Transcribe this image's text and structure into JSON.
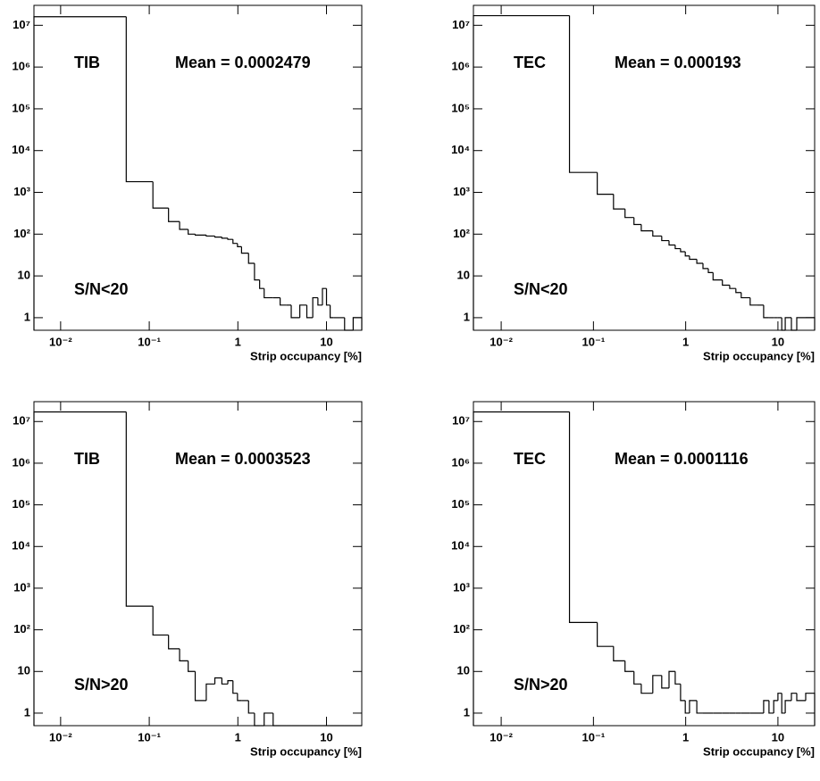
{
  "chart_data": [
    {
      "type": "histogram",
      "detector": "TIB",
      "mean_label": "Mean = 0.0002479",
      "cut_label": "S/N<20",
      "x_label": "Strip occupancy [%]",
      "log_x": true,
      "log_y": true,
      "color": "#000000",
      "xlim": [
        0.005,
        25
      ],
      "ylim": [
        0.5,
        30000000
      ],
      "xticks": [
        {
          "value": 0.01,
          "label": "10⁻²"
        },
        {
          "value": 0.1,
          "label": "10⁻¹"
        },
        1,
        10
      ],
      "yticks": [
        1,
        10,
        {
          "value": 100,
          "label": "10²"
        },
        {
          "value": 1000,
          "label": "10³"
        },
        {
          "value": 10000,
          "label": "10⁴"
        },
        {
          "value": 100000,
          "label": "10⁵"
        },
        {
          "value": 1000000,
          "label": "10⁶"
        },
        {
          "value": 10000000,
          "label": "10⁷"
        }
      ],
      "bins": [
        0,
        0.055,
        0.11,
        0.165,
        0.22,
        0.275,
        0.33,
        0.44,
        0.55,
        0.66,
        0.77,
        0.88,
        0.99,
        1.1,
        1.32,
        1.54,
        1.76,
        1.98,
        2.5,
        3,
        3.5,
        4,
        5,
        6,
        7,
        8,
        9,
        10,
        11,
        12,
        14,
        16,
        20,
        25
      ],
      "values": [
        16000000,
        1800,
        420,
        200,
        130,
        100,
        95,
        90,
        85,
        80,
        75,
        60,
        50,
        35,
        20,
        8,
        5,
        3,
        3,
        2,
        2,
        1,
        2,
        1,
        3,
        2,
        5,
        2,
        1,
        1,
        1,
        0,
        1
      ]
    },
    {
      "type": "histogram",
      "detector": "TEC",
      "mean_label": "Mean = 0.000193",
      "cut_label": "S/N<20",
      "x_label": "Strip occupancy [%]",
      "log_x": true,
      "log_y": true,
      "color": "#000000",
      "xlim": [
        0.005,
        25
      ],
      "ylim": [
        0.5,
        30000000
      ],
      "xticks": [
        {
          "value": 0.01,
          "label": "10⁻²"
        },
        {
          "value": 0.1,
          "label": "10⁻¹"
        },
        1,
        10
      ],
      "yticks": [
        1,
        10,
        {
          "value": 100,
          "label": "10²"
        },
        {
          "value": 1000,
          "label": "10³"
        },
        {
          "value": 10000,
          "label": "10⁴"
        },
        {
          "value": 100000,
          "label": "10⁵"
        },
        {
          "value": 1000000,
          "label": "10⁶"
        },
        {
          "value": 10000000,
          "label": "10⁷"
        }
      ],
      "bins": [
        0,
        0.055,
        0.11,
        0.165,
        0.22,
        0.275,
        0.33,
        0.44,
        0.55,
        0.66,
        0.77,
        0.88,
        0.99,
        1.1,
        1.32,
        1.54,
        1.76,
        1.98,
        2.5,
        3,
        3.5,
        4,
        5,
        6,
        7,
        8,
        9,
        10,
        11,
        12,
        14,
        16,
        20,
        25
      ],
      "values": [
        17000000,
        3000,
        900,
        400,
        250,
        170,
        120,
        90,
        70,
        55,
        45,
        38,
        30,
        25,
        20,
        15,
        12,
        8,
        6,
        5,
        4,
        3,
        2,
        2,
        1,
        1,
        1,
        1,
        0,
        1,
        0,
        1,
        1
      ]
    },
    {
      "type": "histogram",
      "detector": "TIB",
      "mean_label": "Mean = 0.0003523",
      "cut_label": "S/N>20",
      "x_label": "Strip occupancy [%]",
      "log_x": true,
      "log_y": true,
      "color": "#000000",
      "xlim": [
        0.005,
        25
      ],
      "ylim": [
        0.5,
        30000000
      ],
      "xticks": [
        {
          "value": 0.01,
          "label": "10⁻²"
        },
        {
          "value": 0.1,
          "label": "10⁻¹"
        },
        1,
        10
      ],
      "yticks": [
        1,
        10,
        {
          "value": 100,
          "label": "10²"
        },
        {
          "value": 1000,
          "label": "10³"
        },
        {
          "value": 10000,
          "label": "10⁴"
        },
        {
          "value": 100000,
          "label": "10⁵"
        },
        {
          "value": 1000000,
          "label": "10⁶"
        },
        {
          "value": 10000000,
          "label": "10⁷"
        }
      ],
      "bins": [
        0,
        0.055,
        0.11,
        0.165,
        0.22,
        0.275,
        0.33,
        0.44,
        0.55,
        0.66,
        0.77,
        0.88,
        0.99,
        1.1,
        1.32,
        1.54,
        1.76,
        1.98,
        2.5,
        3,
        3.5,
        4,
        5,
        6,
        7,
        8,
        9,
        10,
        11,
        12,
        14,
        16,
        20,
        25
      ],
      "values": [
        17000000,
        370,
        75,
        35,
        18,
        10,
        2,
        5,
        7,
        5,
        6,
        3,
        2,
        2,
        1,
        0,
        0,
        1,
        0,
        0,
        0,
        0,
        0,
        0,
        0,
        0,
        0,
        0,
        0,
        0,
        0,
        0,
        0
      ]
    },
    {
      "type": "histogram",
      "detector": "TEC",
      "mean_label": "Mean = 0.0001116",
      "cut_label": "S/N>20",
      "x_label": "Strip occupancy [%]",
      "log_x": true,
      "log_y": true,
      "color": "#000000",
      "xlim": [
        0.005,
        25
      ],
      "ylim": [
        0.5,
        30000000
      ],
      "xticks": [
        {
          "value": 0.01,
          "label": "10⁻²"
        },
        {
          "value": 0.1,
          "label": "10⁻¹"
        },
        1,
        10
      ],
      "yticks": [
        1,
        10,
        {
          "value": 100,
          "label": "10²"
        },
        {
          "value": 1000,
          "label": "10³"
        },
        {
          "value": 10000,
          "label": "10⁴"
        },
        {
          "value": 100000,
          "label": "10⁵"
        },
        {
          "value": 1000000,
          "label": "10⁶"
        },
        {
          "value": 10000000,
          "label": "10⁷"
        }
      ],
      "bins": [
        0,
        0.055,
        0.11,
        0.165,
        0.22,
        0.275,
        0.33,
        0.44,
        0.55,
        0.66,
        0.77,
        0.88,
        0.99,
        1.1,
        1.32,
        1.54,
        1.76,
        1.98,
        2.5,
        3,
        3.5,
        4,
        5,
        6,
        7,
        8,
        9,
        10,
        11,
        12,
        14,
        16,
        20,
        25
      ],
      "values": [
        17000000,
        150,
        40,
        18,
        10,
        5,
        3,
        8,
        4,
        10,
        5,
        2,
        1,
        2,
        1,
        1,
        1,
        1,
        1,
        1,
        1,
        1,
        1,
        1,
        2,
        1,
        2,
        3,
        1,
        2,
        3,
        2,
        3
      ]
    }
  ]
}
